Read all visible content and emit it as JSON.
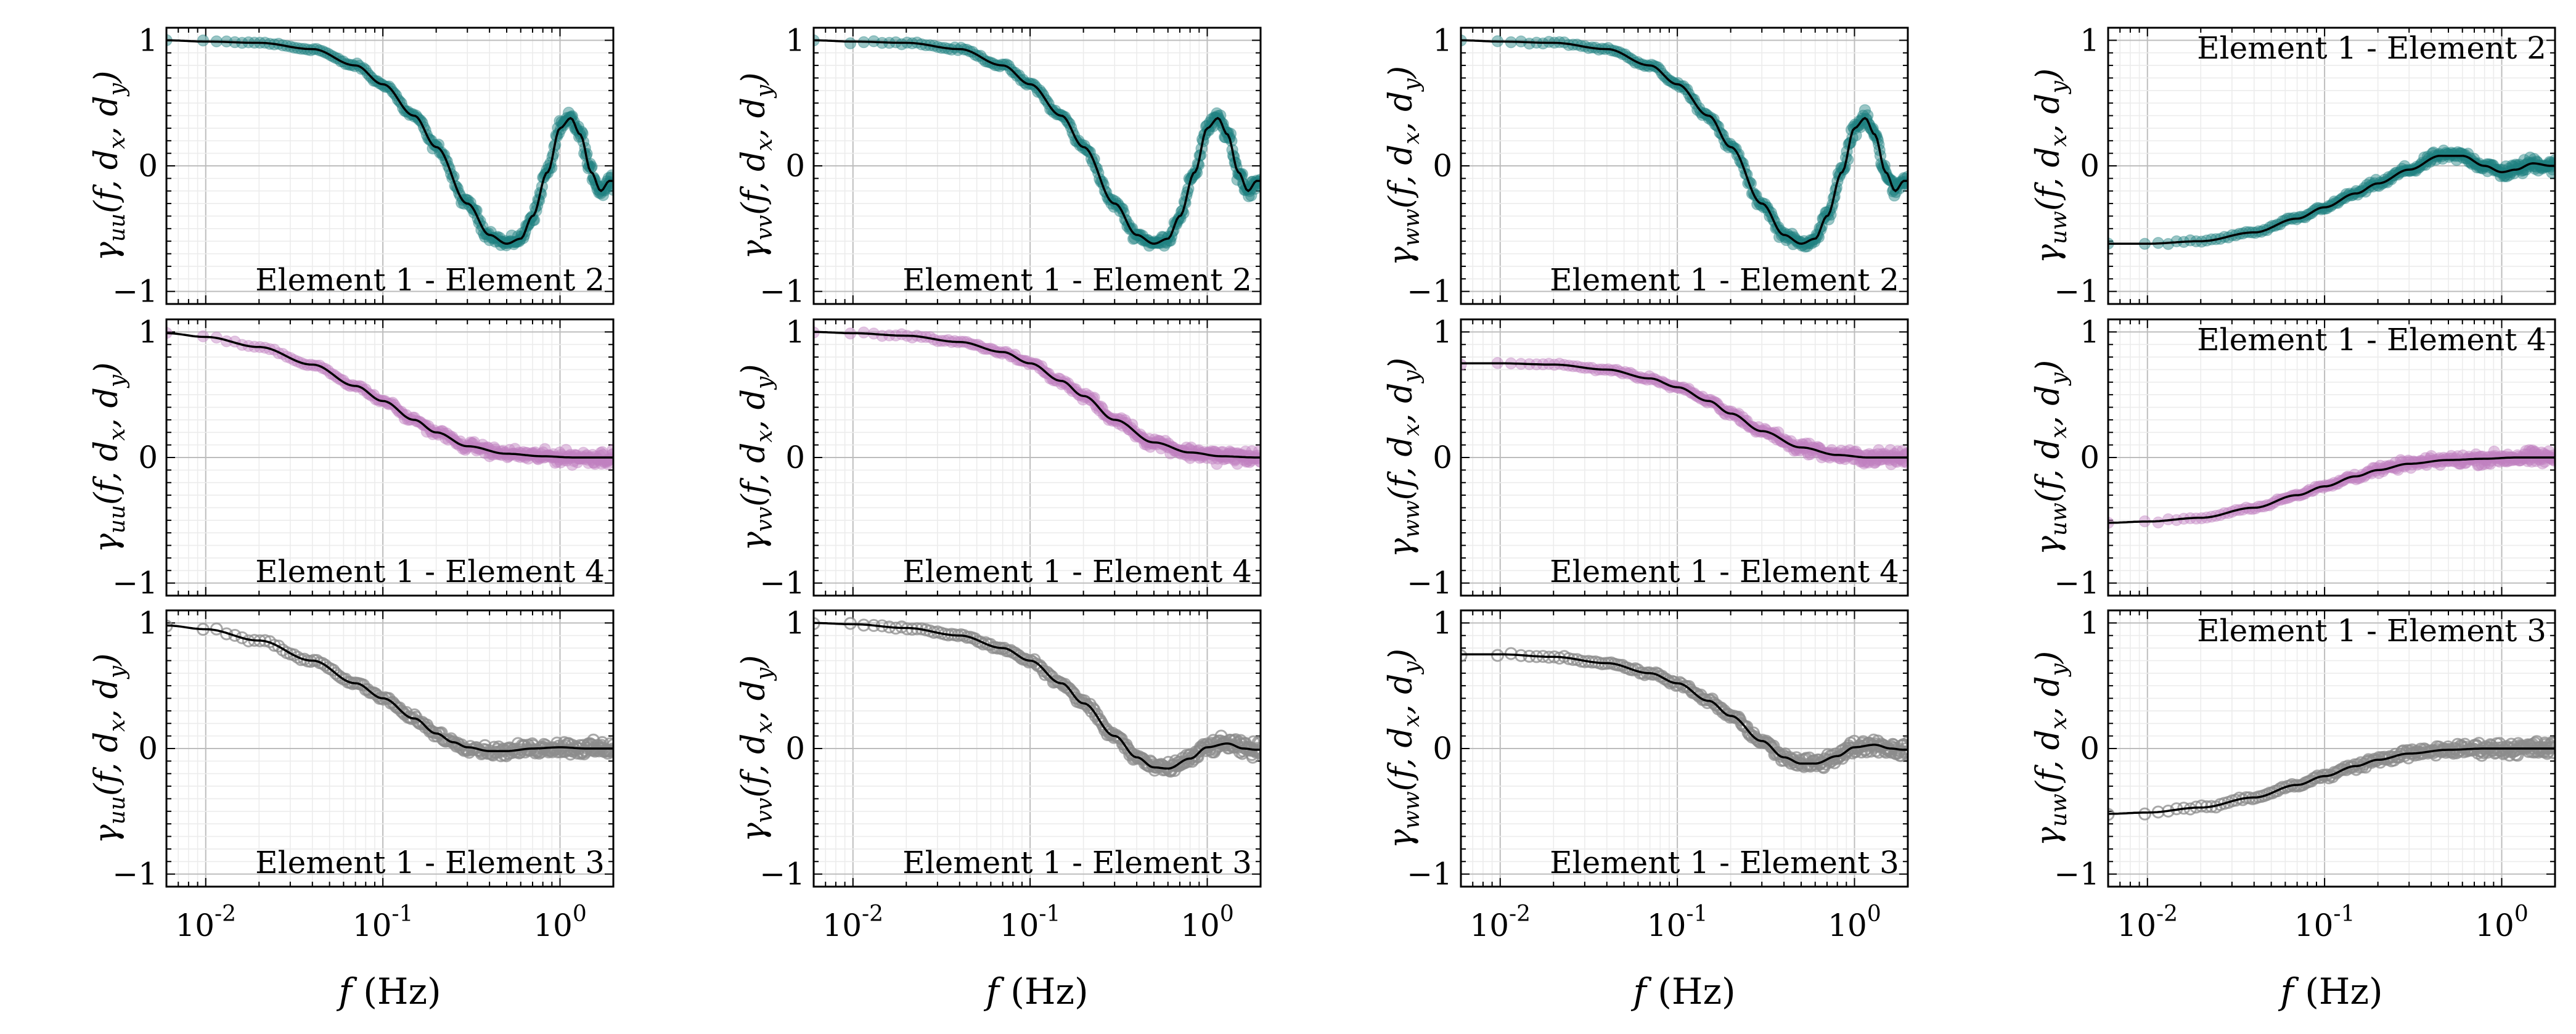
{
  "chart_data": {
    "type": "scatter",
    "layout": "3 rows x 4 columns of panels, log-scaled frequency axis, coherence y axis",
    "xscale": "log",
    "xlim": [
      0.006,
      2.0
    ],
    "ylim": [
      -1.1,
      1.1
    ],
    "x_ticks": [
      0.01,
      0.1,
      1
    ],
    "x_tick_labels": [
      "10^-2",
      "10^-1",
      "10^0"
    ],
    "y_ticks": [
      -1,
      0,
      1
    ],
    "y_tick_labels": [
      "−1",
      "0",
      "1"
    ],
    "xlabel": {
      "main": "f",
      "unit": " (Hz)"
    },
    "ylabel_components": [
      "uu",
      "vv",
      "ww",
      "uw"
    ],
    "ylabel": {
      "base": "γ",
      "args": "(f, d",
      "dx": "x",
      "mid": ", d",
      "dy": "y",
      "end": ")"
    },
    "grid": true,
    "fit_line_color": "#000000",
    "rows": [
      {
        "label": "Element 1 - Element 2",
        "color": "#1f8080",
        "marker": "filled",
        "panels": [
          {
            "component": "uu",
            "label_position": "bottom-right",
            "fit": {
              "x": [
                0.006,
                0.01,
                0.02,
                0.04,
                0.07,
                0.1,
                0.15,
                0.2,
                0.3,
                0.4,
                0.5,
                0.6,
                0.7,
                0.85,
                1.0,
                1.15,
                1.3,
                1.5,
                1.7,
                1.9
              ],
              "y": [
                1.0,
                0.99,
                0.98,
                0.93,
                0.8,
                0.65,
                0.4,
                0.15,
                -0.3,
                -0.55,
                -0.62,
                -0.58,
                -0.4,
                -0.05,
                0.3,
                0.38,
                0.25,
                -0.05,
                -0.2,
                -0.12
              ]
            }
          },
          {
            "component": "vv",
            "label_position": "bottom-right",
            "fit": {
              "x": [
                0.006,
                0.01,
                0.02,
                0.04,
                0.07,
                0.1,
                0.15,
                0.2,
                0.3,
                0.4,
                0.5,
                0.6,
                0.7,
                0.85,
                1.0,
                1.15,
                1.3,
                1.5,
                1.7,
                1.9
              ],
              "y": [
                1.0,
                0.99,
                0.98,
                0.93,
                0.8,
                0.65,
                0.4,
                0.15,
                -0.3,
                -0.55,
                -0.62,
                -0.58,
                -0.4,
                -0.05,
                0.3,
                0.38,
                0.25,
                -0.05,
                -0.2,
                -0.12
              ]
            }
          },
          {
            "component": "ww",
            "label_position": "bottom-right",
            "fit": {
              "x": [
                0.006,
                0.01,
                0.02,
                0.04,
                0.07,
                0.1,
                0.15,
                0.2,
                0.3,
                0.4,
                0.5,
                0.6,
                0.7,
                0.85,
                1.0,
                1.15,
                1.3,
                1.5,
                1.7,
                1.9
              ],
              "y": [
                1.0,
                0.99,
                0.98,
                0.93,
                0.8,
                0.65,
                0.4,
                0.15,
                -0.3,
                -0.55,
                -0.62,
                -0.58,
                -0.4,
                -0.05,
                0.3,
                0.38,
                0.25,
                -0.05,
                -0.2,
                -0.12
              ]
            }
          },
          {
            "component": "uw",
            "label_position": "top-right",
            "fit": {
              "x": [
                0.006,
                0.01,
                0.02,
                0.04,
                0.07,
                0.1,
                0.15,
                0.2,
                0.3,
                0.45,
                0.6,
                0.8,
                1.0,
                1.2,
                1.5,
                1.9
              ],
              "y": [
                -0.62,
                -0.62,
                -0.6,
                -0.53,
                -0.42,
                -0.33,
                -0.22,
                -0.14,
                -0.03,
                0.08,
                0.08,
                0.0,
                -0.05,
                -0.03,
                0.02,
                0.0
              ]
            }
          }
        ]
      },
      {
        "label": "Element 1 - Element 4",
        "color": "#c080c0",
        "marker": "filled",
        "panels": [
          {
            "component": "uu",
            "label_position": "bottom-right",
            "fit": {
              "x": [
                0.006,
                0.01,
                0.02,
                0.04,
                0.07,
                0.1,
                0.15,
                0.2,
                0.3,
                0.5,
                0.8,
                1.2,
                1.9
              ],
              "y": [
                0.99,
                0.96,
                0.88,
                0.74,
                0.57,
                0.45,
                0.3,
                0.2,
                0.09,
                0.03,
                0.01,
                0.0,
                0.0
              ]
            }
          },
          {
            "component": "vv",
            "label_position": "bottom-right",
            "fit": {
              "x": [
                0.006,
                0.01,
                0.02,
                0.04,
                0.07,
                0.1,
                0.15,
                0.2,
                0.3,
                0.5,
                0.8,
                1.2,
                1.9
              ],
              "y": [
                1.0,
                0.99,
                0.97,
                0.92,
                0.84,
                0.75,
                0.61,
                0.49,
                0.3,
                0.12,
                0.04,
                0.01,
                0.0
              ]
            }
          },
          {
            "component": "ww",
            "label_position": "bottom-right",
            "fit": {
              "x": [
                0.006,
                0.01,
                0.02,
                0.04,
                0.07,
                0.1,
                0.15,
                0.2,
                0.3,
                0.5,
                0.8,
                1.2,
                1.9
              ],
              "y": [
                0.75,
                0.75,
                0.74,
                0.7,
                0.63,
                0.56,
                0.45,
                0.35,
                0.21,
                0.08,
                0.02,
                0.0,
                0.0
              ]
            }
          },
          {
            "component": "uw",
            "label_position": "top-right",
            "fit": {
              "x": [
                0.006,
                0.01,
                0.02,
                0.04,
                0.07,
                0.1,
                0.15,
                0.2,
                0.3,
                0.5,
                0.8,
                1.2,
                1.9
              ],
              "y": [
                -0.52,
                -0.51,
                -0.48,
                -0.4,
                -0.3,
                -0.23,
                -0.15,
                -0.1,
                -0.05,
                -0.02,
                -0.01,
                0.0,
                0.0
              ]
            }
          }
        ]
      },
      {
        "label": "Element 1 - Element 3",
        "color": "#8c8c8c",
        "marker": "hollow",
        "panels": [
          {
            "component": "uu",
            "label_position": "bottom-right",
            "fit": {
              "x": [
                0.006,
                0.01,
                0.02,
                0.04,
                0.07,
                0.1,
                0.15,
                0.2,
                0.25,
                0.3,
                0.4,
                0.5,
                0.7,
                1.0,
                1.4,
                1.9
              ],
              "y": [
                0.98,
                0.95,
                0.86,
                0.7,
                0.52,
                0.4,
                0.24,
                0.12,
                0.05,
                0.01,
                -0.02,
                -0.02,
                0.0,
                0.01,
                0.0,
                0.0
              ]
            }
          },
          {
            "component": "vv",
            "label_position": "bottom-right",
            "fit": {
              "x": [
                0.006,
                0.01,
                0.02,
                0.04,
                0.07,
                0.1,
                0.15,
                0.2,
                0.3,
                0.4,
                0.5,
                0.6,
                0.8,
                1.0,
                1.3,
                1.6,
                1.9
              ],
              "y": [
                1.0,
                0.99,
                0.96,
                0.9,
                0.8,
                0.7,
                0.52,
                0.36,
                0.1,
                -0.07,
                -0.15,
                -0.16,
                -0.08,
                0.01,
                0.04,
                0.0,
                -0.01
              ]
            }
          },
          {
            "component": "ww",
            "label_position": "bottom-right",
            "fit": {
              "x": [
                0.006,
                0.01,
                0.02,
                0.04,
                0.07,
                0.1,
                0.15,
                0.2,
                0.3,
                0.4,
                0.5,
                0.6,
                0.8,
                1.0,
                1.3,
                1.6,
                1.9
              ],
              "y": [
                0.75,
                0.75,
                0.73,
                0.68,
                0.6,
                0.52,
                0.38,
                0.26,
                0.06,
                -0.07,
                -0.12,
                -0.12,
                -0.06,
                0.01,
                0.03,
                0.0,
                -0.01
              ]
            }
          },
          {
            "component": "uw",
            "label_position": "top-right",
            "fit": {
              "x": [
                0.006,
                0.01,
                0.02,
                0.04,
                0.07,
                0.1,
                0.15,
                0.2,
                0.3,
                0.5,
                0.8,
                1.2,
                1.9
              ],
              "y": [
                -0.52,
                -0.51,
                -0.47,
                -0.39,
                -0.29,
                -0.22,
                -0.14,
                -0.09,
                -0.04,
                -0.01,
                0.0,
                0.0,
                0.0
              ]
            }
          }
        ]
      }
    ]
  }
}
